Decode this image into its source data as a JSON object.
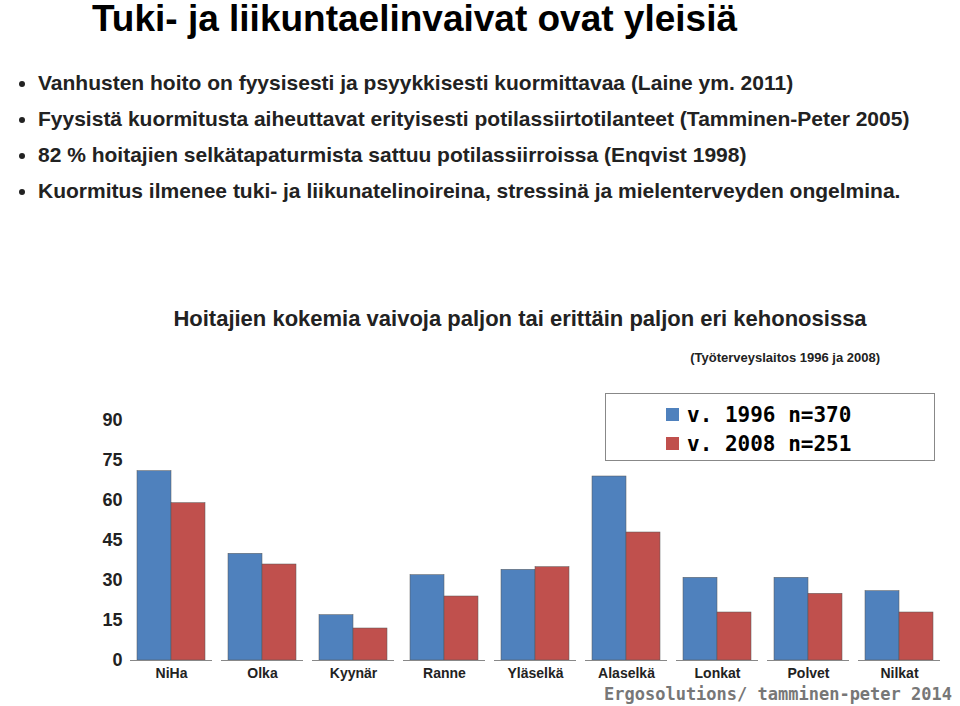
{
  "slide_title": "Tuki- ja liikuntaelinvaivat ovat yleisiä",
  "bullets": [
    "Vanhusten hoito on fyysisesti ja psyykkisesti kuormittavaa (Laine ym. 2011)",
    "Fyysistä kuormitusta aiheuttavat erityisesti potilassiirtotilanteet (Tamminen-Peter 2005)",
    "82 % hoitajien selkätapaturmista sattuu potilassiirroissa (Enqvist 1998)",
    "Kuormitus ilmenee tuki- ja liikunatelinoireina, stressinä ja mielenterveyden ongelmina."
  ],
  "footer": "Ergosolutions/ tamminen-peter 2014",
  "chart_data": {
    "type": "bar",
    "title": "Hoitajien kokemia vaivoja paljon tai erittäin paljon eri kehonosissa",
    "subtitle": "(Työterveyslaitos 1996 ja 2008)",
    "categories": [
      "NiHa",
      "Olka",
      "Kyynär",
      "Ranne",
      "Yläselkä",
      "Alaselkä",
      "Lonkat",
      "Polvet",
      "Nilkat"
    ],
    "series": [
      {
        "name": "v. 1996 n=370",
        "color": "#4f81bd",
        "values": [
          71,
          40,
          17,
          32,
          34,
          69,
          31,
          31,
          26
        ]
      },
      {
        "name": "v. 2008 n=251",
        "color": "#c0504d",
        "values": [
          59,
          36,
          12,
          24,
          35,
          48,
          18,
          25,
          18
        ]
      }
    ],
    "ylim": [
      0,
      90
    ],
    "yticks": [
      0,
      15,
      30,
      45,
      60,
      75,
      90
    ],
    "grid": false,
    "legend": "top-right"
  }
}
